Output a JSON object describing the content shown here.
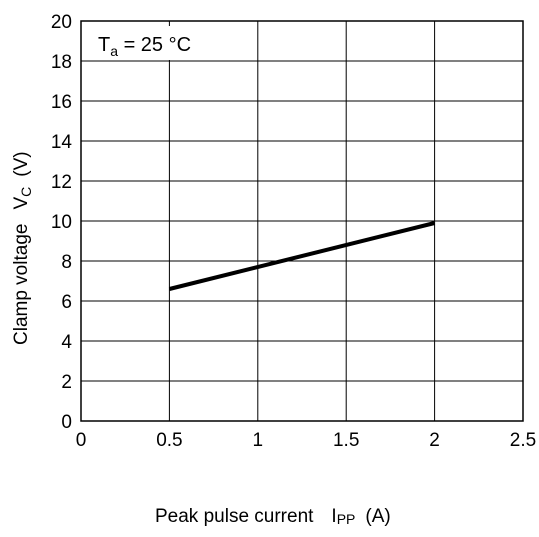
{
  "chart_data": {
    "type": "line",
    "annotation": {
      "main": "T",
      "sub": "a",
      "rest": " = 25 °C"
    },
    "xlabel": {
      "main": "Peak pulse current",
      "symbol": "I",
      "sub": "PP",
      "unit": "(A)"
    },
    "ylabel": {
      "main": "Clamp voltage",
      "symbol": "V",
      "sub": "C",
      "unit": "(V)"
    },
    "xlim": [
      0,
      2.5
    ],
    "ylim": [
      0,
      20
    ],
    "x_ticks": [
      "0",
      "0.5",
      "1",
      "1.5",
      "2",
      "2.5"
    ],
    "x_tick_values": [
      0,
      0.5,
      1,
      1.5,
      2,
      2.5
    ],
    "y_ticks": [
      "0",
      "2",
      "4",
      "6",
      "8",
      "10",
      "12",
      "14",
      "16",
      "18",
      "20"
    ],
    "y_tick_values": [
      0,
      2,
      4,
      6,
      8,
      10,
      12,
      14,
      16,
      18,
      20
    ],
    "grid": true,
    "series": [
      {
        "x": [
          0.5,
          2.0
        ],
        "y": [
          6.6,
          9.9
        ],
        "color": "#000000"
      }
    ]
  }
}
